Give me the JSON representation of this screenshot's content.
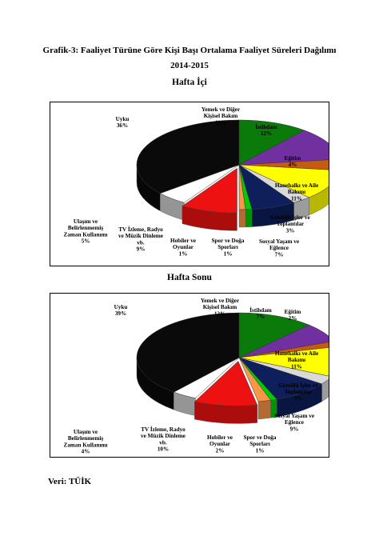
{
  "header": {
    "title": "Grafik-3: Faaliyet Türüne Göre Kişi Başı Ortalama Faaliyet Süreleri Dağılımı",
    "period": "2014-2015"
  },
  "source": "Veri: TÜİK",
  "chart_data": [
    {
      "type": "pie",
      "title": "Hafta İçi",
      "unit": "%",
      "slices": [
        {
          "lines": [
            "Yemek ve Diğer",
            "Kişisel Bakım"
          ],
          "value": 11,
          "color": "#0a7a0a"
        },
        {
          "lines": [
            "İstihdam"
          ],
          "value": 12,
          "color": "#7030a0"
        },
        {
          "lines": [
            "Eğitim"
          ],
          "value": 4,
          "color": "#c55a11"
        },
        {
          "lines": [
            "Hanehalkı ve Aile",
            "Bakımı"
          ],
          "value": 11,
          "color": "#ffff00"
        },
        {
          "lines": [
            "Gönüllü İşler ve",
            "Toplantılar"
          ],
          "value": 3,
          "color": "#d9d9d9"
        },
        {
          "lines": [
            "Sosyal Yaşam ve",
            "Eğlence"
          ],
          "value": 7,
          "color": "#0e1f5b"
        },
        {
          "lines": [
            "Spor ve Doğa",
            "Sporları"
          ],
          "value": 1,
          "color": "#00cc00"
        },
        {
          "lines": [
            "Hobiler ve",
            "Oyunlar"
          ],
          "value": 1,
          "color": "#f79646"
        },
        {
          "lines": [
            "TV İzleme, Radyo",
            "ve Müzik Dinleme",
            "vb."
          ],
          "value": 9,
          "color": "#ee1111"
        },
        {
          "lines": [
            "Ulaşım ve",
            "Belirlenmemiş",
            "Zaman Kullanımı"
          ],
          "value": 5,
          "color": "#ffffff"
        },
        {
          "lines": [
            "Uyku"
          ],
          "value": 36,
          "color": "#0a0a0a"
        }
      ]
    },
    {
      "type": "pie",
      "title": "Hafta Sonu",
      "unit": "%",
      "slices": [
        {
          "lines": [
            "Yemek ve Diğer",
            "Kişisel Bakım"
          ],
          "value": 12,
          "color": "#0a7a0a"
        },
        {
          "lines": [
            "İstihdam"
          ],
          "value": 7,
          "color": "#7030a0"
        },
        {
          "lines": [
            "Eğitim"
          ],
          "value": 2,
          "color": "#c55a11"
        },
        {
          "lines": [
            "Hanehalkı ve Aile",
            "Bakımı"
          ],
          "value": 11,
          "color": "#ffff00"
        },
        {
          "lines": [
            "Gönüllü İşler ve",
            "Toplantılar"
          ],
          "value": 3,
          "color": "#d9d9d9"
        },
        {
          "lines": [
            "Sosyal Yaşam ve",
            "Eğlence"
          ],
          "value": 9,
          "color": "#0e1f5b"
        },
        {
          "lines": [
            "Spor ve Doğa",
            "Sporları"
          ],
          "value": 1,
          "color": "#00cc00"
        },
        {
          "lines": [
            "Hobiler ve",
            "Oyunlar"
          ],
          "value": 2,
          "color": "#f79646"
        },
        {
          "lines": [
            "TV İzleme, Radyo",
            "ve Müzik Dinleme",
            "vb."
          ],
          "value": 10,
          "color": "#ee1111"
        },
        {
          "lines": [
            "Ulaşım ve",
            "Belirlenmemiş",
            "Zaman Kullanımı"
          ],
          "value": 4,
          "color": "#ffffff"
        },
        {
          "lines": [
            "Uyku"
          ],
          "value": 39,
          "color": "#0a0a0a"
        }
      ]
    }
  ]
}
